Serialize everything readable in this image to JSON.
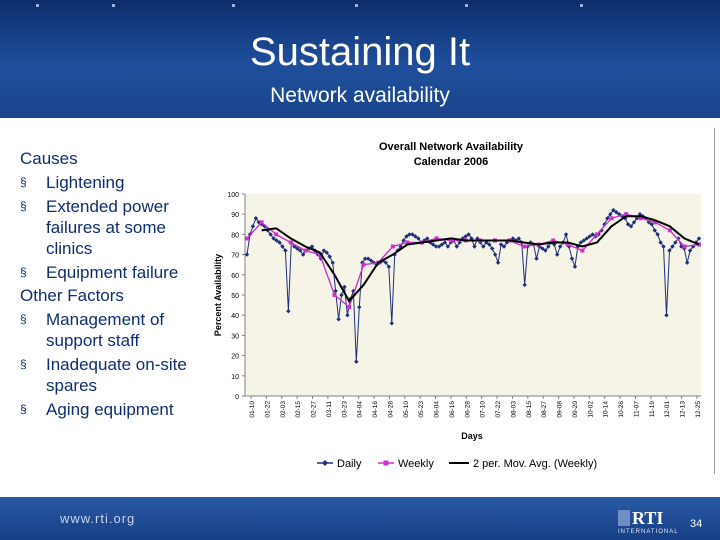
{
  "slide": {
    "title": "Sustaining It",
    "subtitle": "Network availability",
    "page_number": "34",
    "footer_url": "www.rti.org",
    "logo_text": "RTI",
    "logo_subtext": "INTERNATIONAL"
  },
  "causes": {
    "heading": "Causes",
    "items": [
      "Lightening",
      "Extended power failures at some clinics",
      "Equipment failure"
    ]
  },
  "other_factors": {
    "heading": "Other Factors",
    "items": [
      "Management of support staff",
      "Inadequate on-site spares",
      "Aging equipment"
    ]
  },
  "chart_data": {
    "type": "line",
    "title": "Overall Network Availability",
    "subtitle": "Calendar 2006",
    "xlabel": "Days",
    "ylabel": "Percent Availability",
    "ylim": [
      0,
      100
    ],
    "yticks": [
      0,
      10,
      20,
      30,
      40,
      50,
      60,
      70,
      80,
      90,
      100
    ],
    "grid": false,
    "legend_position": "bottom",
    "x_tick_labels": [
      "01-10",
      "01-22",
      "02-03",
      "02-15",
      "02-27",
      "03-11",
      "03-23",
      "04-04",
      "04-16",
      "04-28",
      "05-10",
      "05-23",
      "06-04",
      "06-16",
      "06-28",
      "07-10",
      "07-22",
      "08-03",
      "08-15",
      "08-27",
      "09-08",
      "09-20",
      "10-02",
      "10-14",
      "10-26",
      "11-07",
      "11-19",
      "12-01",
      "12-13",
      "12-25"
    ],
    "series": [
      {
        "name": "Daily",
        "color": "#1f2f7a",
        "marker": "diamond",
        "values": [
          70,
          80,
          84,
          88,
          86,
          85,
          84,
          82,
          80,
          78,
          77,
          76,
          74,
          72,
          42,
          76,
          74,
          73,
          72,
          70,
          72,
          73,
          74,
          72,
          70,
          68,
          72,
          71,
          69,
          66,
          52,
          38,
          50,
          54,
          40,
          48,
          52,
          17,
          44,
          66,
          68,
          68,
          67,
          66,
          65,
          66,
          67,
          66,
          64,
          36,
          70,
          72,
          74,
          77,
          79,
          80,
          80,
          79,
          78,
          76,
          77,
          78,
          76,
          75,
          74,
          74,
          75,
          76,
          74,
          76,
          77,
          74,
          76,
          78,
          79,
          80,
          78,
          74,
          78,
          76,
          74,
          76,
          75,
          73,
          70,
          66,
          75,
          74,
          76,
          77,
          78,
          77,
          78,
          76,
          55,
          74,
          76,
          75,
          68,
          74,
          73,
          72,
          74,
          76,
          75,
          70,
          74,
          76,
          80,
          74,
          68,
          64,
          74,
          76,
          77,
          78,
          79,
          80,
          79,
          80,
          82,
          85,
          88,
          90,
          92,
          91,
          90,
          89,
          88,
          85,
          84,
          86,
          88,
          90,
          89,
          88,
          86,
          85,
          82,
          80,
          76,
          74,
          40,
          72,
          74,
          76,
          78,
          74,
          73,
          66,
          72,
          74,
          76,
          78
        ]
      },
      {
        "name": "Weekly",
        "color": "#cc33cc",
        "marker": "square",
        "values": [
          78,
          86,
          80,
          76,
          72,
          70,
          50,
          44,
          65,
          66,
          74,
          76,
          76,
          78,
          77,
          77,
          77,
          77,
          77,
          74,
          75,
          77,
          75,
          72,
          80,
          88,
          90,
          88,
          86,
          82,
          74,
          75
        ]
      },
      {
        "name": "2 per. Mov. Avg. (Weekly)",
        "color": "#000000",
        "marker": "none",
        "values": [
          null,
          82,
          83,
          78,
          74,
          71,
          60,
          47,
          55,
          66,
          70,
          75,
          76,
          77,
          78,
          77,
          77,
          77,
          77,
          76,
          75,
          76,
          76,
          74,
          76,
          84,
          89,
          89,
          87,
          84,
          78,
          75
        ]
      }
    ]
  }
}
